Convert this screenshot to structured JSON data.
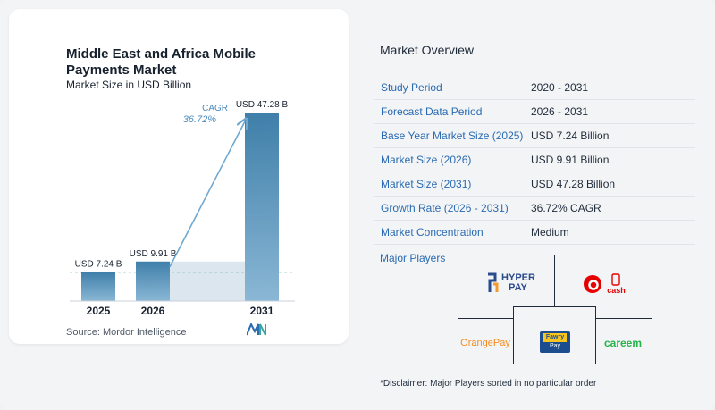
{
  "chart_data": {
    "type": "bar",
    "title": "Middle East and Africa Mobile Payments Market",
    "subtitle": "Market Size in USD Billion",
    "categories": [
      "2025",
      "2026",
      "2031"
    ],
    "values": [
      7.24,
      9.91,
      47.28
    ],
    "value_labels": [
      "USD 7.24 B",
      "USD 9.91 B",
      "USD 47.28 B"
    ],
    "ylim": [
      0,
      47.28
    ],
    "cagr_label": "CAGR",
    "cagr_value": "36.72%",
    "grid": false,
    "colors": {
      "bar_top": "#3f7fa9",
      "bar_bottom": "#8ab7d5",
      "highlight": "#dbe6ee",
      "arrow": "#6fa8d0",
      "dashed": "#5aa78c"
    }
  },
  "source": "Source:  Mordor Intelligence",
  "overview": {
    "title": "Market Overview",
    "rows": [
      {
        "key": "Study Period",
        "value": "2020 - 2031"
      },
      {
        "key": "Forecast Data Period",
        "value": "2026 - 2031"
      },
      {
        "key": "Base Year Market Size (2025)",
        "value": "USD 7.24 Billion"
      },
      {
        "key": "Market Size (2026)",
        "value": "USD 9.91 Billion"
      },
      {
        "key": "Market Size (2031)",
        "value": "USD 47.28 Billion"
      },
      {
        "key": "Growth Rate (2026 - 2031)",
        "value": "36.72% CAGR"
      },
      {
        "key": "Market Concentration",
        "value": "Medium"
      }
    ]
  },
  "players": {
    "label": "Major Players",
    "logos": {
      "hyperpay_top": "HYPER",
      "hyperpay_bottom": "PAY",
      "vodafone_cash": "cash",
      "orangepay": "OrangePay",
      "fawry_top": "Fawry",
      "fawry_bottom": "Pay",
      "careem": "careem"
    }
  },
  "disclaimer": "*Disclaimer: Major Players sorted in no particular order"
}
